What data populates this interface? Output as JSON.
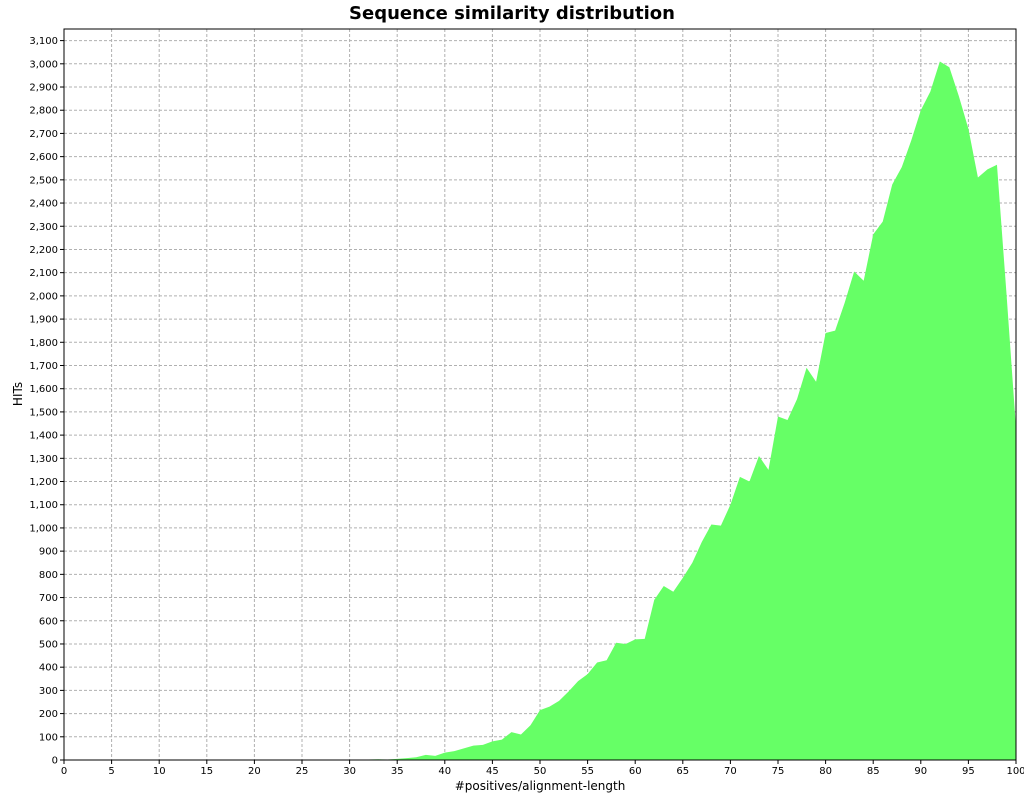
{
  "chart_data": {
    "type": "area",
    "title": "Sequence similarity distribution",
    "xlabel": "#positives/alignment-length",
    "ylabel": "HITs",
    "xlim": [
      0,
      100
    ],
    "ylim": [
      0,
      3150
    ],
    "grid": true,
    "color": "#66ff66",
    "x_ticks": [
      "0",
      "5",
      "10",
      "15",
      "20",
      "25",
      "30",
      "35",
      "40",
      "45",
      "50",
      "55",
      "60",
      "65",
      "70",
      "75",
      "80",
      "85",
      "90",
      "95",
      "100"
    ],
    "y_ticks": [
      "0",
      "100",
      "200",
      "300",
      "400",
      "500",
      "600",
      "700",
      "800",
      "900",
      "1,000",
      "1,100",
      "1,200",
      "1,300",
      "1,400",
      "1,500",
      "1,600",
      "1,700",
      "1,800",
      "1,900",
      "2,000",
      "2,100",
      "2,200",
      "2,300",
      "2,400",
      "2,500",
      "2,600",
      "2,700",
      "2,800",
      "2,900",
      "3,000",
      "3,100"
    ],
    "x": [
      0,
      1,
      2,
      3,
      4,
      5,
      6,
      7,
      8,
      9,
      10,
      11,
      12,
      13,
      14,
      15,
      16,
      17,
      18,
      19,
      20,
      21,
      22,
      23,
      24,
      25,
      26,
      27,
      28,
      29,
      30,
      31,
      32,
      33,
      34,
      35,
      36,
      37,
      38,
      39,
      40,
      41,
      42,
      43,
      44,
      45,
      46,
      47,
      48,
      49,
      50,
      51,
      52,
      53,
      54,
      55,
      56,
      57,
      58,
      59,
      60,
      61,
      62,
      63,
      64,
      65,
      66,
      67,
      68,
      69,
      70,
      71,
      72,
      73,
      74,
      75,
      76,
      77,
      78,
      79,
      80,
      81,
      82,
      83,
      84,
      85,
      86,
      87,
      88,
      89,
      90,
      91,
      92,
      93,
      94,
      95,
      96,
      97,
      98,
      99,
      100
    ],
    "values": [
      0,
      0,
      0,
      0,
      0,
      0,
      0,
      0,
      0,
      0,
      0,
      0,
      0,
      0,
      0,
      0,
      0,
      0,
      0,
      0,
      0,
      0,
      0,
      0,
      0,
      0,
      0,
      0,
      0,
      0,
      0,
      0,
      2,
      3,
      2,
      5,
      8,
      12,
      22,
      18,
      32,
      38,
      50,
      62,
      65,
      80,
      88,
      120,
      110,
      150,
      215,
      230,
      255,
      295,
      340,
      370,
      420,
      430,
      505,
      500,
      520,
      522,
      690,
      750,
      725,
      785,
      850,
      940,
      1015,
      1010,
      1100,
      1220,
      1200,
      1310,
      1250,
      1480,
      1465,
      1555,
      1690,
      1630,
      1840,
      1850,
      1970,
      2105,
      2065,
      2265,
      2320,
      2480,
      2555,
      2670,
      2800,
      2880,
      3010,
      2985,
      2860,
      2720,
      2510,
      2545,
      2565,
      2010,
      1430
    ]
  }
}
